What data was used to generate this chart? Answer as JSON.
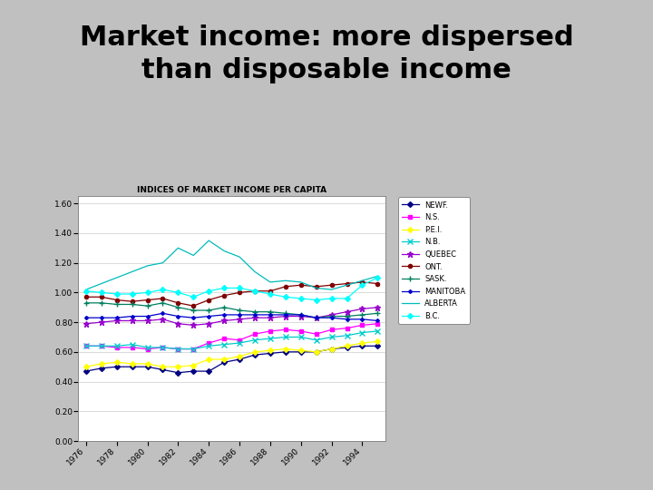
{
  "title": "Market income: more dispersed\nthan disposable income",
  "chart_title": "INDICES OF MARKET INCOME PER CAPITA",
  "years": [
    1976,
    1977,
    1978,
    1979,
    1980,
    1981,
    1982,
    1983,
    1984,
    1985,
    1986,
    1987,
    1988,
    1989,
    1990,
    1991,
    1992,
    1993,
    1994,
    1995
  ],
  "series": [
    {
      "name": "NEWF.",
      "color": "#000080",
      "marker": "D",
      "markersize": 3,
      "values": [
        0.47,
        0.49,
        0.5,
        0.5,
        0.5,
        0.48,
        0.46,
        0.47,
        0.47,
        0.53,
        0.55,
        0.58,
        0.59,
        0.6,
        0.6,
        0.6,
        0.62,
        0.63,
        0.64,
        0.64
      ]
    },
    {
      "name": "N.S.",
      "color": "#FF00FF",
      "marker": "s",
      "markersize": 3,
      "values": [
        0.64,
        0.64,
        0.63,
        0.63,
        0.62,
        0.63,
        0.62,
        0.62,
        0.66,
        0.69,
        0.68,
        0.72,
        0.74,
        0.75,
        0.74,
        0.72,
        0.75,
        0.76,
        0.78,
        0.79
      ]
    },
    {
      "name": "P.E.I.",
      "color": "#FFFF00",
      "marker": "D",
      "markersize": 3,
      "values": [
        0.5,
        0.52,
        0.53,
        0.52,
        0.52,
        0.5,
        0.5,
        0.51,
        0.55,
        0.55,
        0.57,
        0.6,
        0.61,
        0.62,
        0.61,
        0.6,
        0.62,
        0.64,
        0.66,
        0.67
      ]
    },
    {
      "name": "N.B.",
      "color": "#00CCCC",
      "marker": "x",
      "markersize": 4,
      "values": [
        0.64,
        0.64,
        0.64,
        0.65,
        0.63,
        0.63,
        0.62,
        0.62,
        0.64,
        0.65,
        0.66,
        0.68,
        0.69,
        0.7,
        0.7,
        0.68,
        0.7,
        0.71,
        0.73,
        0.74
      ]
    },
    {
      "name": "QUEBEC",
      "color": "#9900CC",
      "marker": "*",
      "markersize": 5,
      "values": [
        0.79,
        0.8,
        0.81,
        0.81,
        0.81,
        0.82,
        0.79,
        0.78,
        0.79,
        0.81,
        0.82,
        0.83,
        0.83,
        0.84,
        0.84,
        0.83,
        0.85,
        0.87,
        0.89,
        0.9
      ]
    },
    {
      "name": "ONT.",
      "color": "#800000",
      "marker": "o",
      "markersize": 3,
      "values": [
        0.97,
        0.97,
        0.95,
        0.94,
        0.95,
        0.96,
        0.93,
        0.91,
        0.95,
        0.98,
        1.0,
        1.01,
        1.01,
        1.04,
        1.05,
        1.04,
        1.05,
        1.06,
        1.07,
        1.06
      ]
    },
    {
      "name": "SASK.",
      "color": "#008060",
      "marker": "+",
      "markersize": 5,
      "values": [
        0.93,
        0.93,
        0.92,
        0.92,
        0.91,
        0.93,
        0.9,
        0.88,
        0.88,
        0.9,
        0.88,
        0.87,
        0.87,
        0.86,
        0.85,
        0.83,
        0.84,
        0.84,
        0.85,
        0.86
      ]
    },
    {
      "name": "MANITOBA",
      "color": "#0000CC",
      "marker": "D",
      "markersize": 2,
      "values": [
        0.83,
        0.83,
        0.83,
        0.84,
        0.84,
        0.86,
        0.84,
        0.83,
        0.84,
        0.85,
        0.85,
        0.85,
        0.85,
        0.85,
        0.85,
        0.83,
        0.83,
        0.82,
        0.82,
        0.81
      ]
    },
    {
      "name": "ALBERTA",
      "color": "#00BBBB",
      "marker": "none",
      "markersize": 3,
      "values": [
        1.02,
        1.06,
        1.1,
        1.14,
        1.18,
        1.2,
        1.3,
        1.25,
        1.35,
        1.28,
        1.24,
        1.14,
        1.07,
        1.08,
        1.07,
        1.03,
        1.02,
        1.05,
        1.08,
        1.11
      ]
    },
    {
      "name": "B.C.",
      "color": "#00FFFF",
      "marker": "D",
      "markersize": 3,
      "values": [
        1.01,
        1.0,
        0.99,
        0.99,
        1.0,
        1.02,
        1.0,
        0.97,
        1.01,
        1.03,
        1.03,
        1.01,
        0.99,
        0.97,
        0.96,
        0.95,
        0.96,
        0.96,
        1.05,
        1.1
      ]
    }
  ],
  "ylim": [
    0.0,
    1.65
  ],
  "yticks": [
    0.0,
    0.2,
    0.4,
    0.6,
    0.8,
    1.0,
    1.2,
    1.4,
    1.6
  ],
  "outer_bg": "#C0C0C0",
  "white_box_bg": "#FFFFFF",
  "chart_bg": "#FFFFFF",
  "title_fontsize": 22,
  "chart_title_fontsize": 6.5
}
